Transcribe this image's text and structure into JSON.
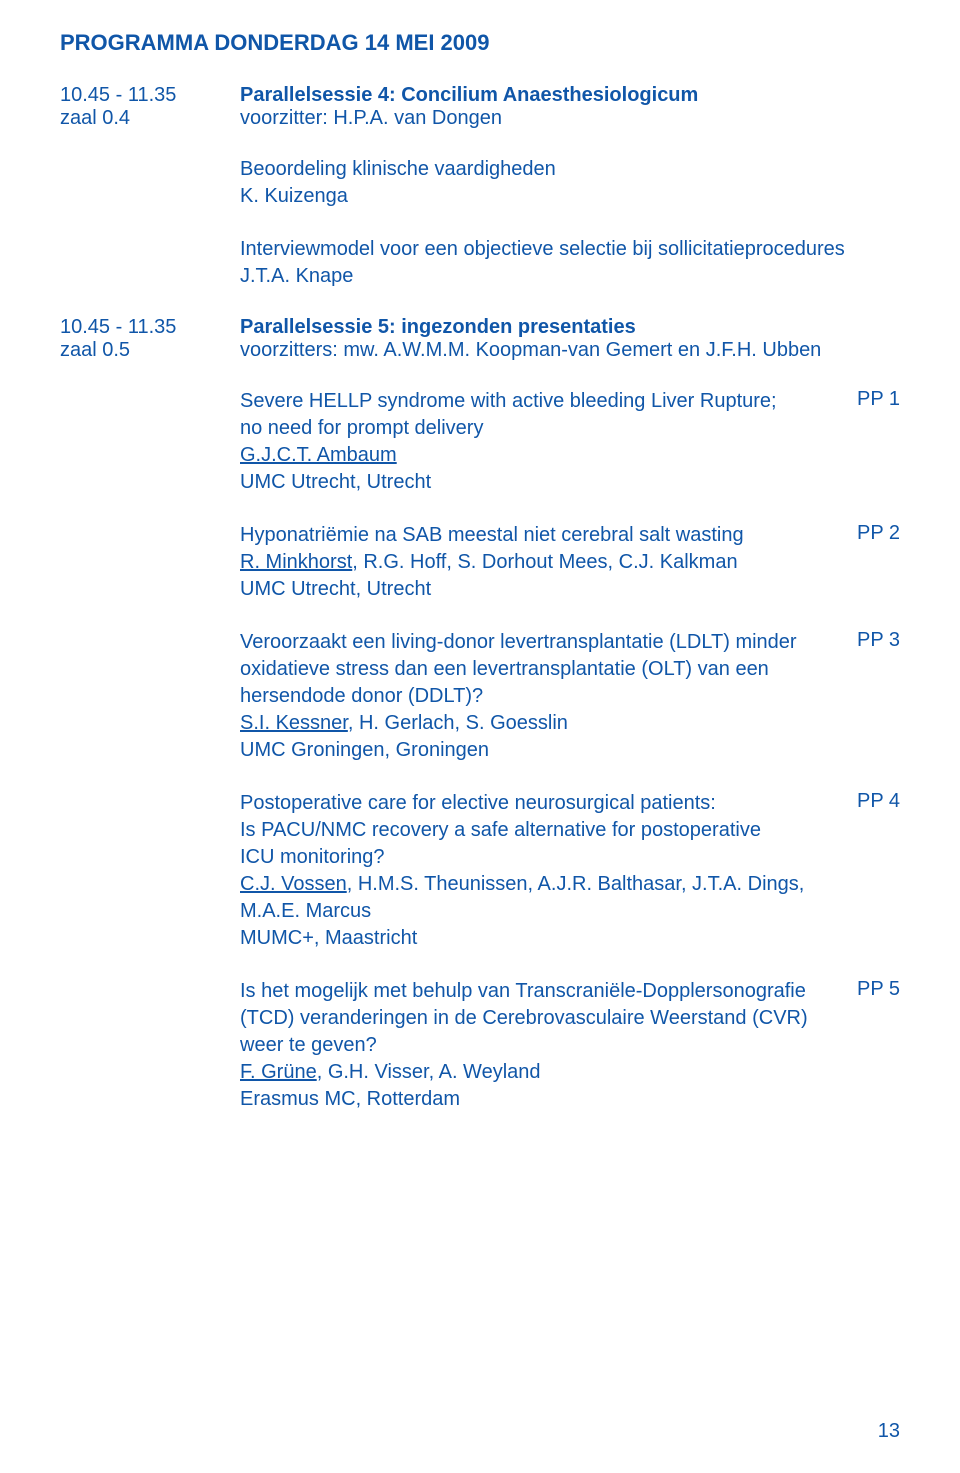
{
  "header": "PROGRAMMA DONDERDAG 14 MEI 2009",
  "session1": {
    "time": "10.45 - 11.35",
    "room": "zaal 0.4",
    "title": "Parallelsessie 4: Concilium Anaesthesiologicum",
    "chair": "voorzitter: H.P.A. van Dongen"
  },
  "sub1": {
    "title": "Beoordeling klinische vaardigheden",
    "author": "K. Kuizenga"
  },
  "sub2": {
    "title": "Interviewmodel voor een objectieve selectie bij sollicitatieprocedures",
    "author": "J.T.A. Knape"
  },
  "session2": {
    "time": "10.45 - 11.35",
    "room": "zaal 0.5",
    "title": "Parallelsessie 5: ingezonden presentaties",
    "chair": "voorzitters: mw. A.W.M.M. Koopman-van Gemert en J.F.H. Ubben"
  },
  "pres1": {
    "line1": "Severe HELLP syndrome with active bleeding Liver Rupture;",
    "line2": "no need for prompt delivery",
    "author": "G.J.C.T. Ambaum",
    "affil": "UMC Utrecht, Utrecht",
    "code": "PP 1"
  },
  "pres2": {
    "line1": "Hyponatriëmie na SAB meestal niet cerebral salt wasting",
    "author_u": "R. Minkhorst",
    "author_rest": ", R.G. Hoff, S. Dorhout Mees, C.J. Kalkman",
    "affil": "UMC Utrecht, Utrecht",
    "code": "PP 2"
  },
  "pres3": {
    "line1": "Veroorzaakt een living-donor levertransplantatie (LDLT) minder",
    "line2": "oxidatieve stress dan een levertransplantatie (OLT) van een",
    "line3": "hersendode donor (DDLT)?",
    "author_u": "S.I. Kessner",
    "author_rest": ", H. Gerlach, S. Goesslin",
    "affil": "UMC Groningen, Groningen",
    "code": "PP 3"
  },
  "pres4": {
    "line1": "Postoperative care for elective neurosurgical patients:",
    "line2": "Is PACU/NMC recovery a safe alternative for postoperative",
    "line3": "ICU monitoring?",
    "author_u": "C.J. Vossen",
    "author_rest": ", H.M.S. Theunissen, A.J.R. Balthasar, J.T.A. Dings,",
    "author_line2": "M.A.E. Marcus",
    "affil": "MUMC+, Maastricht",
    "code": "PP 4"
  },
  "pres5": {
    "line1": "Is het mogelijk met behulp van Transcraniële-Dopplersonografie",
    "line2": "(TCD) veranderingen in de Cerebrovasculaire Weerstand (CVR)",
    "line3": "weer te geven?",
    "author_u": "F. Grüne",
    "author_rest": ", G.H. Visser, A. Weyland",
    "affil": "Erasmus MC, Rotterdam",
    "code": "PP 5"
  },
  "page_number": "13"
}
